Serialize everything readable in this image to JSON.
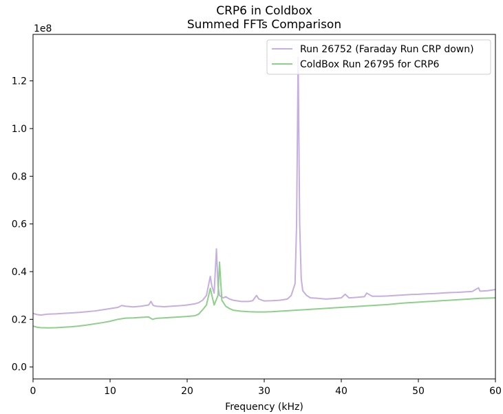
{
  "chart_data": {
    "type": "line",
    "title": "CRP6 in Coldbox",
    "subtitle": "Summed FFTs Comparison",
    "xlabel": "Frequency (kHz)",
    "ylabel": "",
    "y_offset_label": "1e8",
    "xlim": [
      0,
      60
    ],
    "ylim": [
      -0.05,
      1.395
    ],
    "x_ticks": [
      0,
      10,
      20,
      30,
      40,
      50,
      60
    ],
    "x_tick_labels": [
      "0",
      "10",
      "20",
      "30",
      "40",
      "50",
      "60"
    ],
    "y_ticks": [
      0,
      0.2,
      0.4,
      0.6,
      0.8,
      1.0,
      1.2
    ],
    "y_tick_labels": [
      "0.0",
      "0.2",
      "0.4",
      "0.6",
      "0.8",
      "1.0",
      "1.2"
    ],
    "grid": false,
    "legend_position": "top-right",
    "series": [
      {
        "name": "Run 26752 (Faraday Run CRP down)",
        "color": "#c5aee0",
        "x": [
          0,
          0.5,
          1,
          1.5,
          2,
          3,
          4,
          5,
          6,
          7,
          8,
          9,
          10,
          11,
          11.5,
          12,
          13,
          14,
          15,
          15.3,
          15.6,
          16,
          17,
          18,
          19,
          20,
          21,
          21.5,
          22,
          22.5,
          23,
          23.2,
          23.5,
          23.8,
          24,
          24.2,
          24.4,
          24.7,
          25,
          25.5,
          26,
          27,
          28,
          28.5,
          29,
          29.3,
          30,
          31,
          32,
          33,
          33.5,
          34,
          34.2,
          34.4,
          34.6,
          34.8,
          35,
          35.5,
          36,
          37,
          38,
          39,
          40,
          40.5,
          41,
          42,
          43,
          43.3,
          44,
          45,
          46,
          47,
          48,
          49,
          50,
          51,
          52,
          53,
          54,
          55,
          56,
          57,
          57.8,
          58,
          59,
          60
        ],
        "values": [
          0.225,
          0.22,
          0.218,
          0.22,
          0.222,
          0.223,
          0.225,
          0.227,
          0.229,
          0.232,
          0.235,
          0.24,
          0.245,
          0.25,
          0.258,
          0.255,
          0.252,
          0.255,
          0.26,
          0.275,
          0.258,
          0.255,
          0.253,
          0.255,
          0.257,
          0.26,
          0.265,
          0.27,
          0.28,
          0.3,
          0.38,
          0.34,
          0.31,
          0.495,
          0.34,
          0.3,
          0.295,
          0.29,
          0.295,
          0.285,
          0.28,
          0.275,
          0.275,
          0.278,
          0.3,
          0.285,
          0.277,
          0.278,
          0.28,
          0.285,
          0.3,
          0.35,
          0.6,
          1.3,
          0.6,
          0.37,
          0.32,
          0.3,
          0.29,
          0.288,
          0.285,
          0.287,
          0.29,
          0.305,
          0.29,
          0.292,
          0.295,
          0.31,
          0.297,
          0.297,
          0.298,
          0.3,
          0.302,
          0.304,
          0.305,
          0.307,
          0.308,
          0.31,
          0.312,
          0.313,
          0.315,
          0.317,
          0.332,
          0.318,
          0.32,
          0.325
        ]
      },
      {
        "name": "ColdBox Run 26795 for CRP6",
        "color": "#8fcf8c",
        "x": [
          0,
          0.5,
          1,
          2,
          3,
          4,
          5,
          6,
          7,
          8,
          9,
          10,
          11,
          12,
          13,
          14,
          15,
          15.5,
          16,
          17,
          18,
          19,
          20,
          21,
          21.5,
          22,
          22.5,
          23,
          23.5,
          24,
          24.2,
          24.5,
          25,
          25.5,
          26,
          27,
          28,
          29,
          30,
          31,
          32,
          33,
          34,
          35,
          36,
          37,
          38,
          39,
          40,
          41,
          42,
          43,
          44,
          45,
          46,
          47,
          48,
          49,
          50,
          51,
          52,
          53,
          54,
          55,
          56,
          57,
          58,
          59,
          60
        ],
        "values": [
          0.172,
          0.167,
          0.165,
          0.164,
          0.165,
          0.167,
          0.169,
          0.172,
          0.176,
          0.181,
          0.186,
          0.192,
          0.2,
          0.205,
          0.206,
          0.208,
          0.21,
          0.2,
          0.204,
          0.206,
          0.208,
          0.21,
          0.212,
          0.215,
          0.222,
          0.24,
          0.26,
          0.33,
          0.26,
          0.3,
          0.44,
          0.28,
          0.255,
          0.245,
          0.238,
          0.234,
          0.232,
          0.231,
          0.231,
          0.232,
          0.234,
          0.236,
          0.238,
          0.24,
          0.242,
          0.244,
          0.246,
          0.248,
          0.25,
          0.252,
          0.254,
          0.256,
          0.258,
          0.26,
          0.262,
          0.265,
          0.268,
          0.27,
          0.272,
          0.274,
          0.276,
          0.278,
          0.28,
          0.282,
          0.284,
          0.286,
          0.288,
          0.289,
          0.29
        ]
      }
    ]
  }
}
